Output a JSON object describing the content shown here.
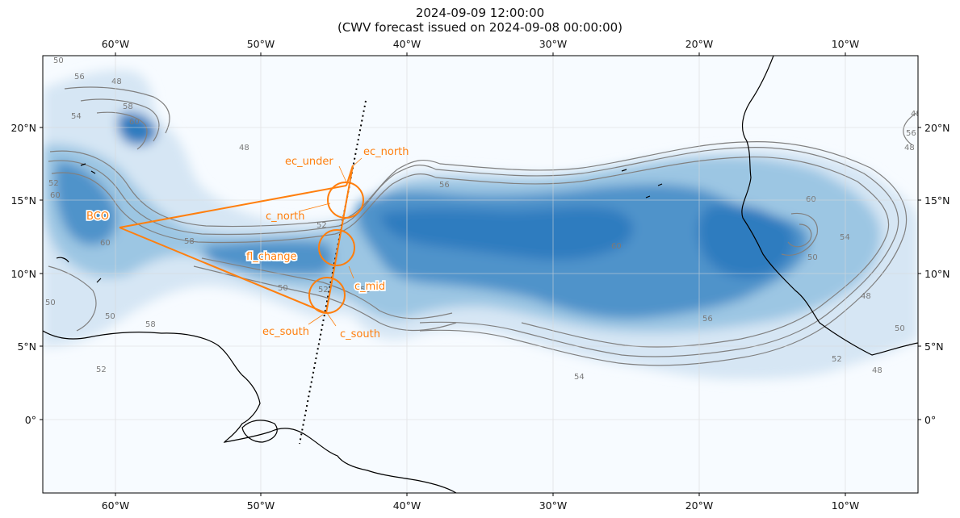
{
  "title": {
    "line1": "2024-09-09 12:00:00",
    "line2": "(CWV forecast issued on 2024-09-08 00:00:00)"
  },
  "axes": {
    "lon_ticks": [
      "60°W",
      "50°W",
      "40°W",
      "30°W",
      "20°W",
      "10°W"
    ],
    "lat_ticks": [
      "20°N",
      "15°N",
      "10°N",
      "5°N",
      "0°"
    ]
  },
  "colors": {
    "track": "#ff7f0e",
    "contour": "#808080",
    "coast": "#000000",
    "cwv_low": "#f7fbff",
    "cwv_high": "#2f7bbf"
  },
  "annotations": {
    "bco": "BCO",
    "ec_north": "ec_north",
    "ec_under": "ec_under",
    "c_north": "c_north",
    "fl_change": "fl_change",
    "c_mid": "c_mid",
    "ec_south": "ec_south",
    "c_south": "c_south"
  },
  "contour_labels": [
    "50",
    "48",
    "56",
    "60",
    "54",
    "52",
    "58",
    "48",
    "56",
    "52",
    "58",
    "60",
    "50",
    "52",
    "58",
    "60",
    "50",
    "56",
    "48",
    "54",
    "48",
    "50",
    "50",
    "58",
    "60",
    "56",
    "60",
    "52",
    "48",
    "50",
    "52",
    "54",
    "48"
  ]
}
